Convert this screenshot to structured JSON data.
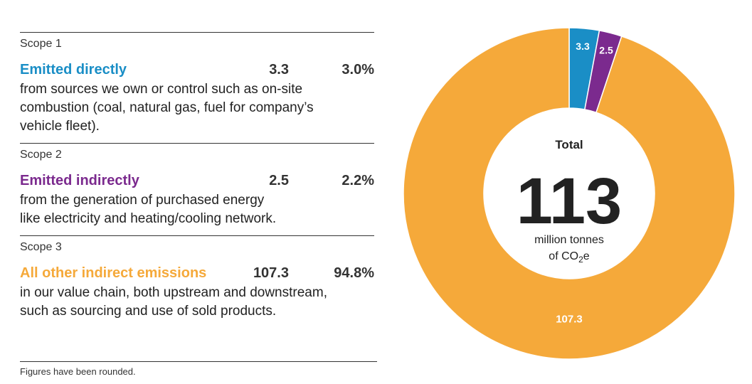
{
  "scopes": [
    {
      "label": "Scope 1",
      "title": "Emitted directly",
      "value": "3.3",
      "percent": "3.0%",
      "color": "#1a8ec6",
      "description": "from sources we own or control such as on-site\ncombustion (coal, natural gas, fuel for company’s\nvehicle fleet)."
    },
    {
      "label": "Scope 2",
      "title": "Emitted indirectly",
      "value": "2.5",
      "percent": "2.2%",
      "color": "#7b2a8e",
      "description": "from the generation of purchased energy\nlike electricity and heating/cooling network."
    },
    {
      "label": "Scope 3",
      "title": "All other indirect emissions",
      "value": "107.3",
      "percent": "94.8%",
      "color": "#f5a93a",
      "description": "in our value chain, both upstream and downstream,\nsuch as sourcing and use of sold products."
    }
  ],
  "footnote": "Figures have been rounded.",
  "chart_data": {
    "type": "pie",
    "variant": "donut",
    "categories": [
      "Scope 1",
      "Scope 2",
      "Scope 3"
    ],
    "values": [
      3.3,
      2.5,
      107.3
    ],
    "labels": [
      "3.3",
      "2.5",
      "107.3"
    ],
    "colors": [
      "#1a8ec6",
      "#7b2a8e",
      "#f5a93a"
    ],
    "start": "top",
    "direction": "clockwise",
    "center": {
      "title": "Total",
      "value": "113",
      "unit_line1": "million tonnes",
      "unit_line2_prefix": "of CO",
      "unit_line2_sub": "2",
      "unit_line2_suffix": "e"
    }
  }
}
